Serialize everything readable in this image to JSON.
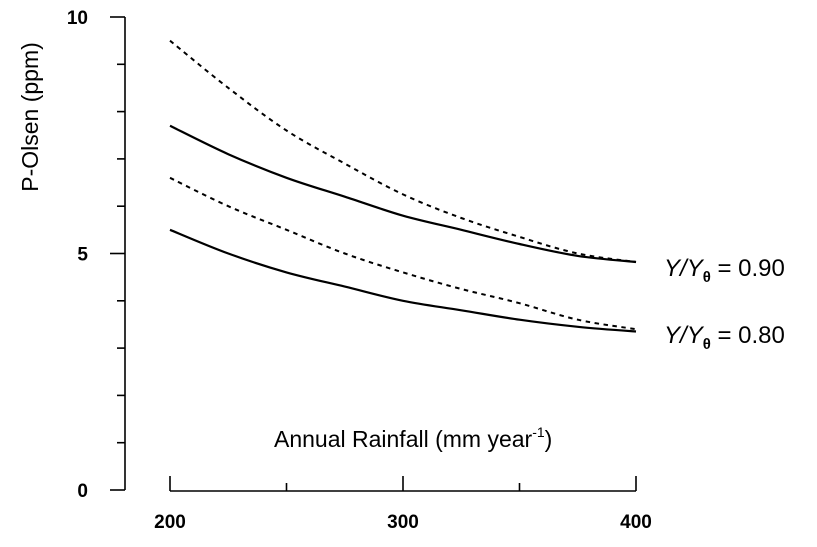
{
  "chart_data": {
    "type": "line",
    "ylabel": "P-Olsen (ppm)",
    "xlabel": {
      "text": "Annual Rainfall (mm year",
      "sup": "-1",
      "close": ")"
    },
    "xlim": [
      200,
      400
    ],
    "ylim": [
      0,
      10
    ],
    "x_ticks": [
      200,
      300,
      400
    ],
    "x_minor_ticks": [
      250,
      350
    ],
    "y_ticks": [
      0,
      5,
      10
    ],
    "y_minor_ticks": [
      1,
      2,
      3,
      4,
      6,
      7,
      8,
      9
    ],
    "grid": false,
    "x": [
      200,
      225,
      250,
      275,
      300,
      325,
      350,
      375,
      400
    ],
    "series": [
      {
        "style": "dashed",
        "values": [
          9.5,
          8.5,
          7.6,
          6.9,
          6.25,
          5.75,
          5.35,
          5.0,
          4.82
        ]
      },
      {
        "style": "solid",
        "values": [
          7.7,
          7.1,
          6.6,
          6.2,
          5.8,
          5.5,
          5.2,
          4.95,
          4.82
        ]
      },
      {
        "style": "dashed",
        "values": [
          6.6,
          6.0,
          5.5,
          5.0,
          4.6,
          4.25,
          3.95,
          3.6,
          3.4
        ]
      },
      {
        "style": "solid",
        "values": [
          5.5,
          5.0,
          4.6,
          4.3,
          4.0,
          3.8,
          3.6,
          3.45,
          3.35
        ]
      }
    ],
    "annotations": [
      {
        "y": 0.9,
        "label": {
          "var": "Y",
          "slash": "/",
          "var2": "Y",
          "sub": "θ",
          "rest": " = 0.90"
        }
      },
      {
        "y": 0.8,
        "label": {
          "var": "Y",
          "slash": "/",
          "var2": "Y",
          "sub": "θ",
          "rest": " = 0.80"
        }
      }
    ]
  }
}
